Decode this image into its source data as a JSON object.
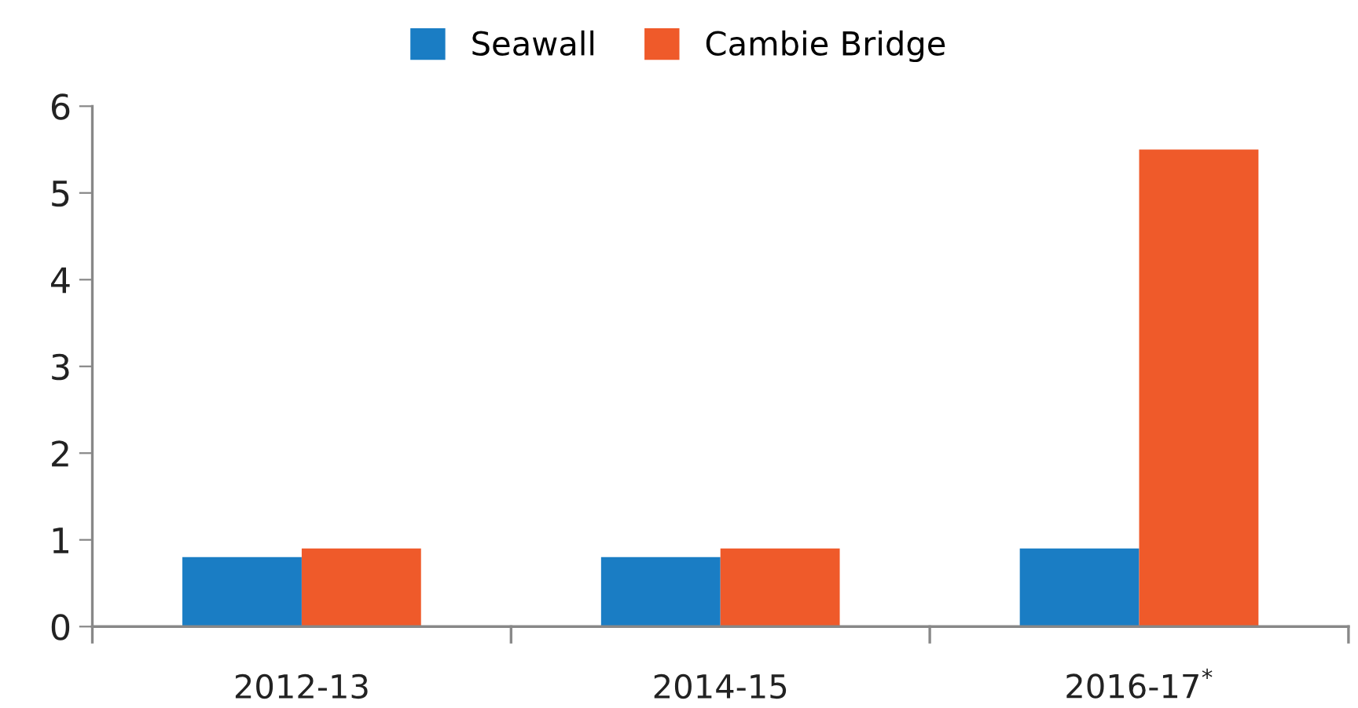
{
  "chart_data": {
    "type": "bar",
    "categories": [
      "2012-13",
      "2014-15",
      "2016-17$^{*}$"
    ],
    "series": [
      {
        "name": "Seawall",
        "color": "#1a7dc4",
        "values": [
          0.8,
          0.8,
          0.9
        ]
      },
      {
        "name": "Cambie Bridge",
        "color": "#ef5a2a",
        "values": [
          0.9,
          0.9,
          5.5
        ]
      }
    ],
    "ylim": [
      0,
      6
    ],
    "yticks": [
      0,
      1,
      2,
      3,
      4,
      5,
      6
    ],
    "grid": false,
    "legend": "top"
  }
}
